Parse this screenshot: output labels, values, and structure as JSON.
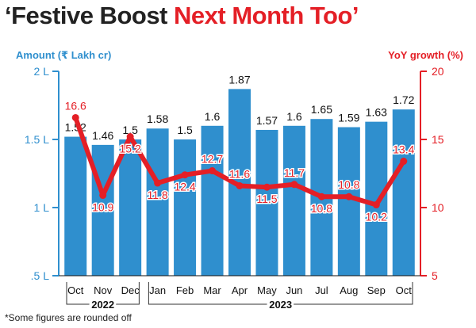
{
  "title_part1": "‘Festive Boost",
  "title_part2": "Next Month Too’",
  "footnote": "*Some figures are rounded off",
  "colors": {
    "bar": "#2f8fce",
    "line": "#e41f26",
    "title_dark": "#222222"
  },
  "chart_data": {
    "type": "bar+line",
    "categories": [
      "Oct",
      "Nov",
      "Dec",
      "Jan",
      "Feb",
      "Mar",
      "Apr",
      "May",
      "Jun",
      "Jul",
      "Aug",
      "Sep",
      "Oct"
    ],
    "year_groups": [
      {
        "label": "2022",
        "from": 0,
        "to": 2
      },
      {
        "label": "2023",
        "from": 3,
        "to": 12
      }
    ],
    "left_axis": {
      "title": "Amount (₹ Lakh cr)",
      "range": [
        0.5,
        2
      ],
      "ticks": [
        0.5,
        1,
        1.5,
        2
      ],
      "tick_labels": [
        ".5 L",
        "1 L",
        "1.5 L",
        "2 L"
      ]
    },
    "right_axis": {
      "title": "YoY growth (%)",
      "range": [
        5,
        20
      ],
      "ticks": [
        5,
        10,
        15,
        20
      ],
      "tick_labels": [
        "5",
        "10",
        "15",
        "20"
      ]
    },
    "series": [
      {
        "type": "bar",
        "axis": "left",
        "values": [
          1.52,
          1.46,
          1.5,
          1.58,
          1.5,
          1.6,
          1.87,
          1.57,
          1.6,
          1.65,
          1.59,
          1.63,
          1.72
        ],
        "labels": [
          "1.52",
          "1.46",
          "1.5",
          "1.58",
          "1.5",
          "1.6",
          "1.87",
          "1.57",
          "1.6",
          "1.65",
          "1.59",
          "1.63",
          "1.72"
        ]
      },
      {
        "type": "line",
        "axis": "right",
        "values": [
          16.6,
          10.9,
          15.2,
          11.8,
          12.4,
          12.7,
          11.6,
          11.5,
          11.7,
          10.8,
          10.8,
          10.2,
          13.4
        ],
        "labels": [
          "16.6",
          "10.9",
          "15.2",
          "11.8",
          "12.4",
          "12.7",
          "11.6",
          "11.5",
          "11.7",
          "10.8",
          "10.8",
          "10.2",
          "13.4"
        ]
      }
    ],
    "grid": false,
    "legend": "none"
  }
}
